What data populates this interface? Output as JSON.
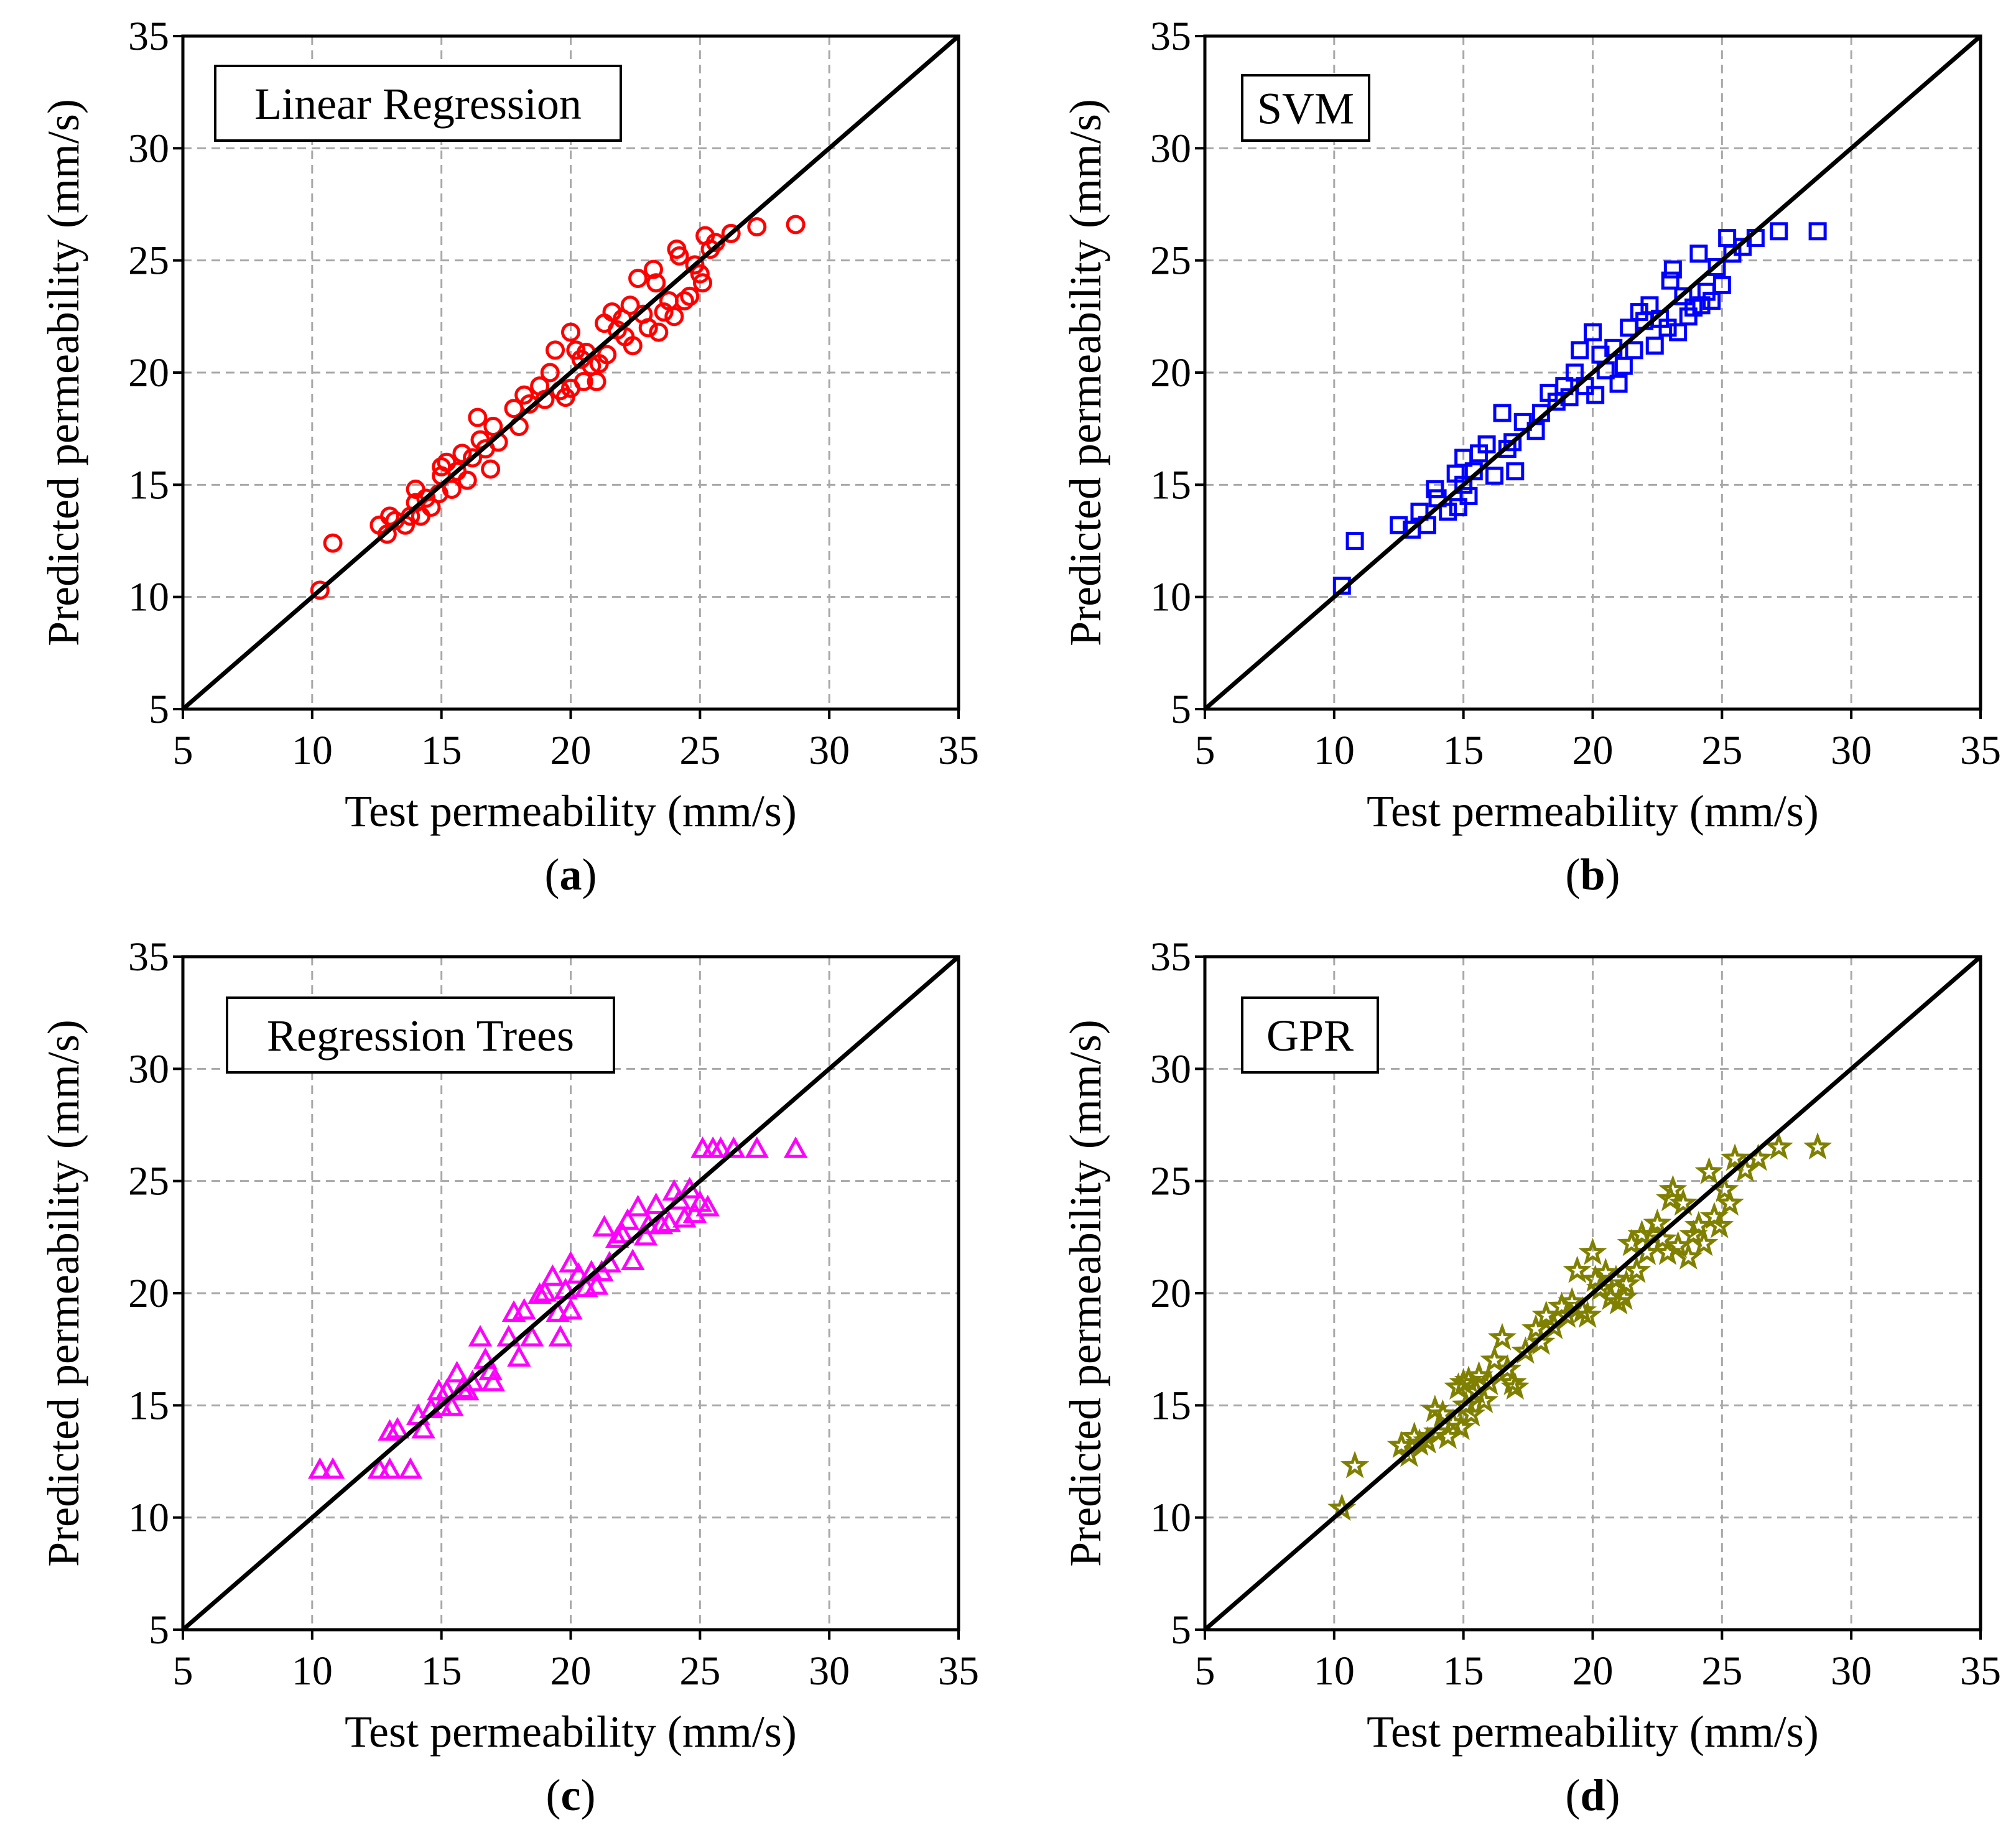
{
  "chart_data": [
    {
      "type": "scatter",
      "title": "Linear Regression",
      "caption_letter": "a",
      "xlabel": "Test permeability (mm/s)",
      "ylabel": "Predicted permeability (mm/s)",
      "xlim": [
        5,
        35
      ],
      "ylim": [
        5,
        35
      ],
      "xticks": [
        "5",
        "10",
        "15",
        "20",
        "25",
        "30",
        "35"
      ],
      "yticks": [
        "5",
        "10",
        "15",
        "20",
        "25",
        "30",
        "35"
      ],
      "grid": true,
      "marker": "circle",
      "color": "#ff0000",
      "reference_line": {
        "from": [
          5,
          5
        ],
        "to": [
          35,
          35
        ],
        "color": "#000000"
      },
      "x": [
        10.3,
        10.8,
        12.6,
        12.9,
        13.0,
        13.2,
        13.6,
        13.8,
        14.0,
        14.0,
        14.2,
        14.4,
        14.6,
        14.9,
        15.0,
        15.0,
        15.2,
        15.4,
        15.6,
        15.8,
        16.0,
        16.2,
        16.4,
        16.5,
        16.7,
        16.9,
        17.0,
        17.2,
        17.8,
        18.0,
        18.2,
        18.4,
        18.8,
        19.0,
        19.2,
        19.4,
        19.6,
        19.8,
        20.0,
        20.0,
        20.2,
        20.4,
        20.5,
        20.6,
        20.8,
        21.0,
        21.1,
        21.3,
        21.4,
        21.6,
        21.8,
        22.0,
        22.1,
        22.3,
        22.4,
        22.6,
        22.8,
        23.0,
        23.2,
        23.3,
        23.4,
        23.6,
        23.8,
        24.0,
        24.1,
        24.2,
        24.4,
        24.6,
        24.8,
        25.0,
        25.1,
        25.2,
        25.4,
        25.6,
        26.2,
        27.2,
        28.7
      ],
      "y": [
        10.3,
        12.4,
        13.2,
        12.8,
        13.6,
        13.4,
        13.2,
        13.6,
        14.8,
        14.2,
        13.6,
        14.4,
        14.0,
        14.6,
        15.8,
        15.4,
        16.0,
        14.8,
        15.6,
        16.4,
        15.2,
        16.2,
        18.0,
        17.0,
        16.6,
        15.7,
        17.6,
        16.9,
        18.4,
        17.6,
        19.0,
        18.6,
        19.4,
        18.8,
        20.0,
        21.0,
        19.2,
        18.9,
        21.8,
        19.3,
        21.0,
        20.6,
        19.6,
        20.9,
        20.3,
        19.6,
        20.4,
        22.2,
        20.8,
        22.7,
        21.9,
        22.4,
        21.6,
        23.0,
        21.2,
        24.2,
        22.6,
        22.0,
        24.6,
        24.0,
        21.8,
        22.7,
        23.2,
        22.5,
        25.5,
        25.2,
        23.2,
        23.4,
        24.8,
        24.4,
        24.0,
        26.1,
        25.5,
        25.8,
        26.2,
        26.5,
        26.6
      ]
    },
    {
      "type": "scatter",
      "title": "SVM",
      "caption_letter": "b",
      "xlabel": "Test permeability (mm/s)",
      "ylabel": "Predicted permeability (mm/s)",
      "xlim": [
        5,
        35
      ],
      "ylim": [
        5,
        35
      ],
      "xticks": [
        "5",
        "10",
        "15",
        "20",
        "25",
        "30",
        "35"
      ],
      "yticks": [
        "5",
        "10",
        "15",
        "20",
        "25",
        "30",
        "35"
      ],
      "grid": true,
      "marker": "square",
      "color": "#0000ff",
      "reference_line": {
        "from": [
          5,
          5
        ],
        "to": [
          35,
          35
        ],
        "color": "#000000"
      },
      "x": [
        10.3,
        10.8,
        12.5,
        13.0,
        13.3,
        13.6,
        13.9,
        14.0,
        14.4,
        14.7,
        14.8,
        15.0,
        15.0,
        15.2,
        15.4,
        15.6,
        15.9,
        16.2,
        16.5,
        16.7,
        16.9,
        17.0,
        17.3,
        17.8,
        18.0,
        18.3,
        18.6,
        18.9,
        19.1,
        19.3,
        19.5,
        19.7,
        20.0,
        20.1,
        20.3,
        20.5,
        20.8,
        21.0,
        21.2,
        21.4,
        21.6,
        21.8,
        22.0,
        22.2,
        22.4,
        22.6,
        22.9,
        23.0,
        23.1,
        23.3,
        23.5,
        23.7,
        23.9,
        24.1,
        24.2,
        24.4,
        24.6,
        24.8,
        25.0,
        25.2,
        25.4,
        25.8,
        26.3,
        27.2,
        28.7
      ],
      "y": [
        10.5,
        12.5,
        13.2,
        13.0,
        13.8,
        13.2,
        14.8,
        14.4,
        13.8,
        15.5,
        14.0,
        16.2,
        15.0,
        14.5,
        15.6,
        16.4,
        16.8,
        15.4,
        18.2,
        16.6,
        16.9,
        15.6,
        17.8,
        17.4,
        18.2,
        19.1,
        18.7,
        19.4,
        18.9,
        20.0,
        21.0,
        19.4,
        21.8,
        19.0,
        20.8,
        20.1,
        21.1,
        19.5,
        20.3,
        22.0,
        21.0,
        22.7,
        22.3,
        23.0,
        21.2,
        22.4,
        22.0,
        24.1,
        24.6,
        21.8,
        23.4,
        22.5,
        22.9,
        25.3,
        23.0,
        23.6,
        23.2,
        24.7,
        23.9,
        26.0,
        25.3,
        25.6,
        26.0,
        26.3,
        26.3
      ]
    },
    {
      "type": "scatter",
      "title": "Regression Trees",
      "caption_letter": "c",
      "xlabel": "Test permeability (mm/s)",
      "ylabel": "Predicted permeability (mm/s)",
      "xlim": [
        5,
        35
      ],
      "ylim": [
        5,
        35
      ],
      "xticks": [
        "5",
        "10",
        "15",
        "20",
        "25",
        "30",
        "35"
      ],
      "yticks": [
        "5",
        "10",
        "15",
        "20",
        "25",
        "30",
        "35"
      ],
      "grid": true,
      "marker": "triangle",
      "color": "#ff00ff",
      "reference_line": {
        "from": [
          5,
          5
        ],
        "to": [
          35,
          35
        ],
        "color": "#000000"
      },
      "x": [
        10.3,
        10.8,
        12.6,
        13.0,
        13.0,
        13.3,
        13.8,
        14.1,
        14.3,
        14.6,
        14.9,
        15.0,
        15.2,
        15.4,
        15.6,
        15.8,
        16.0,
        16.2,
        16.5,
        16.7,
        16.9,
        17.0,
        17.6,
        17.8,
        18.0,
        18.2,
        18.5,
        18.8,
        19.0,
        19.3,
        19.5,
        19.6,
        19.8,
        20.0,
        20.0,
        20.3,
        20.6,
        20.8,
        21.0,
        21.2,
        21.3,
        21.5,
        21.8,
        22.0,
        22.2,
        22.4,
        22.6,
        22.9,
        23.0,
        23.3,
        23.5,
        23.8,
        24.0,
        24.2,
        24.4,
        24.6,
        24.8,
        25.0,
        25.1,
        25.3,
        25.5,
        25.8,
        26.3,
        27.2,
        28.7
      ],
      "y": [
        12.1,
        12.1,
        12.1,
        13.8,
        12.1,
        13.9,
        12.1,
        14.5,
        13.9,
        14.8,
        15.6,
        14.9,
        15.6,
        14.9,
        16.4,
        15.7,
        15.6,
        16.0,
        18.0,
        17.0,
        16.5,
        16.0,
        18.0,
        19.1,
        17.1,
        19.2,
        18.0,
        19.9,
        20.0,
        20.7,
        19.1,
        18.0,
        20.1,
        21.3,
        19.2,
        20.8,
        20.2,
        20.9,
        20.3,
        20.9,
        22.9,
        21.3,
        22.4,
        22.6,
        23.2,
        21.4,
        23.8,
        22.5,
        23.0,
        23.9,
        23.0,
        23.1,
        24.5,
        24.1,
        23.3,
        24.6,
        23.5,
        24.0,
        26.4,
        23.8,
        26.4,
        26.4,
        26.4,
        26.4,
        26.4
      ]
    },
    {
      "type": "scatter",
      "title": "GPR",
      "caption_letter": "d",
      "xlabel": "Test permeability (mm/s)",
      "ylabel": "Predicted permeability (mm/s)",
      "xlim": [
        5,
        35
      ],
      "ylim": [
        5,
        35
      ],
      "xticks": [
        "5",
        "10",
        "15",
        "20",
        "25",
        "30",
        "35"
      ],
      "yticks": [
        "5",
        "10",
        "15",
        "20",
        "25",
        "30",
        "35"
      ],
      "grid": true,
      "marker": "star",
      "color": "#808000",
      "reference_line": {
        "from": [
          5,
          5
        ],
        "to": [
          35,
          35
        ],
        "color": "#000000"
      },
      "x": [
        10.3,
        10.8,
        12.6,
        12.9,
        13.1,
        13.3,
        13.6,
        13.9,
        14.0,
        14.2,
        14.4,
        14.6,
        14.8,
        14.9,
        15.0,
        15.1,
        15.2,
        15.3,
        15.5,
        15.6,
        15.8,
        16.0,
        16.2,
        16.5,
        16.7,
        16.9,
        17.0,
        17.4,
        17.8,
        18.0,
        18.2,
        18.5,
        18.8,
        19.0,
        19.2,
        19.4,
        19.6,
        19.8,
        20.0,
        20.1,
        20.3,
        20.5,
        20.7,
        20.9,
        21.0,
        21.2,
        21.3,
        21.5,
        21.7,
        21.9,
        22.1,
        22.3,
        22.5,
        22.7,
        22.9,
        23.0,
        23.1,
        23.3,
        23.5,
        23.7,
        23.9,
        24.1,
        24.3,
        24.5,
        24.7,
        24.9,
        25.1,
        25.3,
        25.5,
        25.9,
        26.4,
        27.2,
        28.7
      ],
      "y": [
        10.4,
        12.3,
        13.2,
        12.8,
        13.6,
        13.3,
        13.4,
        14.8,
        13.8,
        14.6,
        13.6,
        14.2,
        15.8,
        14.0,
        16.0,
        15.0,
        16.1,
        14.6,
        15.6,
        16.3,
        15.2,
        16.0,
        17.0,
        18.0,
        16.6,
        16.0,
        15.8,
        17.4,
        18.4,
        17.8,
        19.0,
        18.5,
        19.4,
        19.0,
        19.6,
        21.0,
        19.2,
        19.0,
        21.8,
        20.6,
        20.2,
        20.9,
        19.8,
        20.6,
        19.6,
        19.8,
        20.4,
        22.2,
        21.0,
        22.6,
        21.8,
        22.6,
        23.1,
        22.4,
        21.8,
        24.2,
        24.6,
        22.1,
        24.0,
        21.6,
        22.6,
        23.0,
        22.2,
        25.4,
        23.4,
        23.0,
        24.6,
        24.0,
        26.0,
        25.5,
        26.0,
        26.5,
        26.5
      ]
    }
  ]
}
